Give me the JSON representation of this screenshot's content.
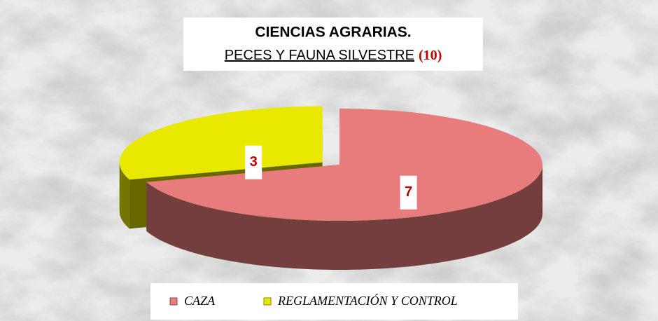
{
  "chart_data": {
    "type": "pie",
    "title": "CIENCIAS AGRARIAS.",
    "subtitle": "PECES Y FAUNA SILVESTRE",
    "subtitle_total": "(10)",
    "categories": [
      "CAZA",
      "REGLAMENTACIÓN Y CONTROL"
    ],
    "values": [
      7,
      3
    ],
    "colors": [
      "#e87c7c",
      "#e8e800"
    ],
    "legend": "bottom"
  }
}
